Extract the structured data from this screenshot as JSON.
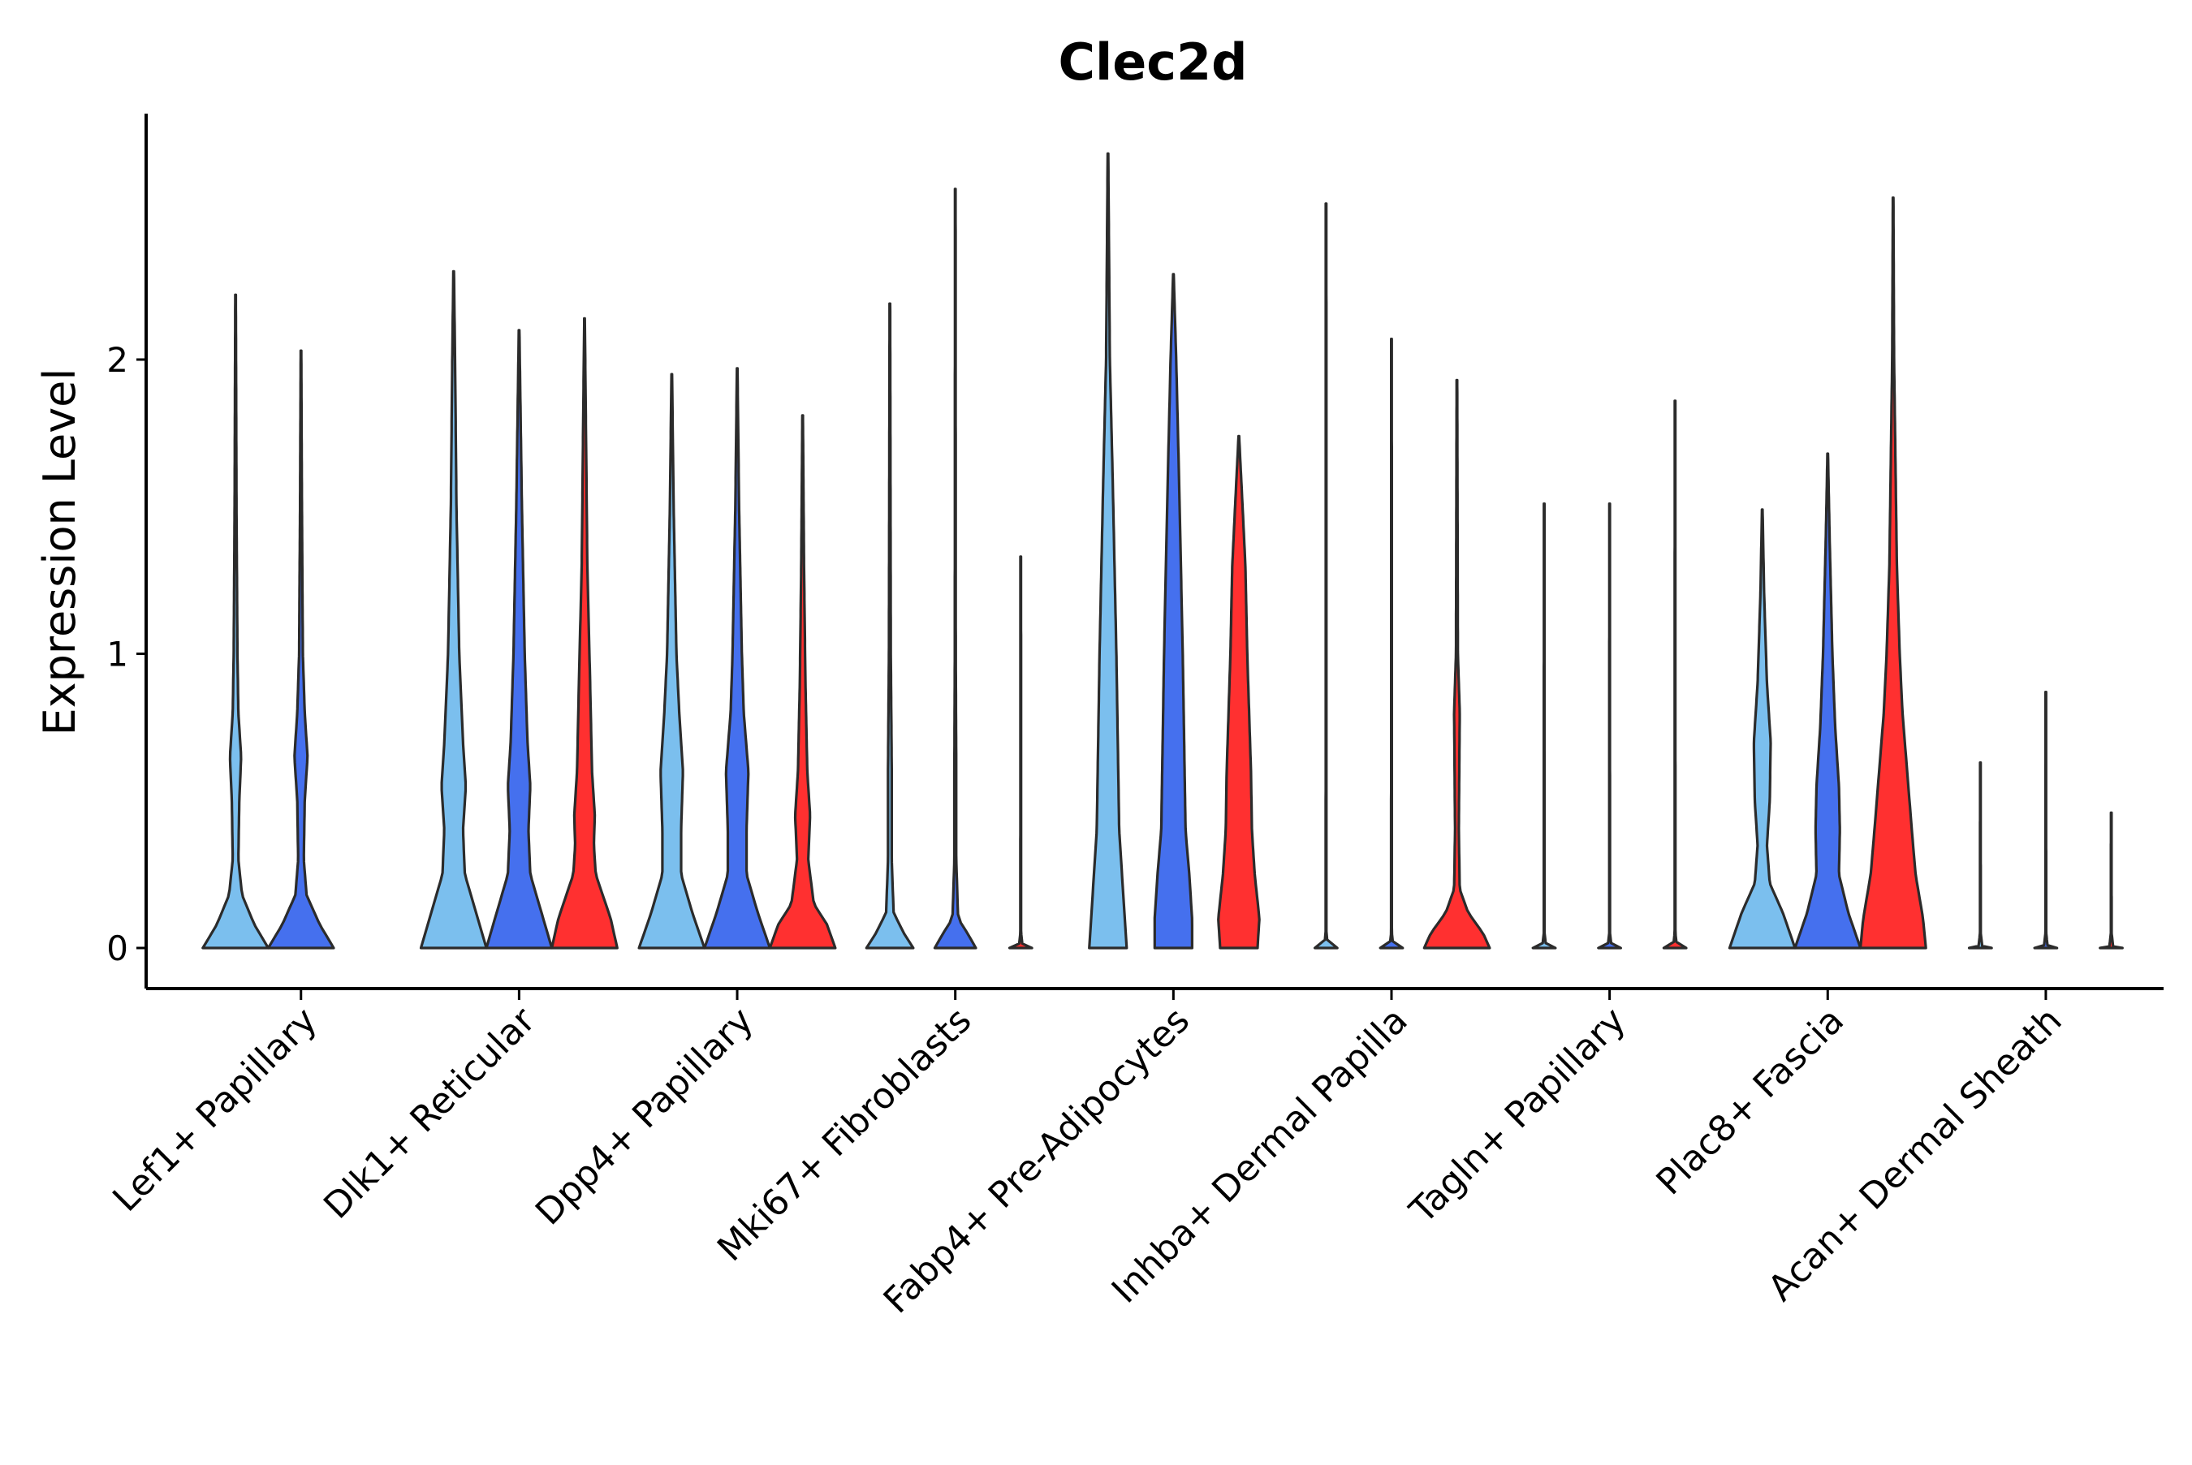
{
  "chart_data": {
    "type": "violin",
    "title": "Clec2d",
    "xlabel": "",
    "ylabel": "Expression Level",
    "ylim": [
      -0.14,
      2.82
    ],
    "yticks": [
      0,
      1,
      2
    ],
    "grid": false,
    "legend": "none",
    "categories": [
      "Lef1+ Papillary",
      "Dlk1+ Reticular",
      "Dpp4+ Papillary",
      "Mki67+ Fibroblasts",
      "Fabp4+ Pre-Adipocytes",
      "Inhba+ Dermal Papilla",
      "Tagln+ Papillary",
      "Plac8+ Fascia",
      "Acan+ Dermal Sheath"
    ],
    "series": [
      {
        "name": "group 1",
        "color": "#7BBFEE"
      },
      {
        "name": "group 2",
        "color": "#4570EE"
      },
      {
        "name": "group 3",
        "color": "#FF3030"
      }
    ],
    "violins": [
      {
        "category": 0,
        "series": 0,
        "max": 2.22,
        "profile": [
          [
            0,
            0.35
          ],
          [
            0.08,
            0.2
          ],
          [
            0.18,
            0.07
          ],
          [
            0.3,
            0.03
          ],
          [
            0.5,
            0.04
          ],
          [
            0.65,
            0.06
          ],
          [
            0.8,
            0.03
          ],
          [
            1.0,
            0.02
          ],
          [
            1.5,
            0.01
          ],
          [
            2.22,
            0.003
          ]
        ]
      },
      {
        "category": 0,
        "series": 1,
        "max": 2.03,
        "profile": [
          [
            0,
            0.35
          ],
          [
            0.08,
            0.2
          ],
          [
            0.18,
            0.06
          ],
          [
            0.3,
            0.03
          ],
          [
            0.5,
            0.04
          ],
          [
            0.65,
            0.07
          ],
          [
            0.8,
            0.04
          ],
          [
            1.0,
            0.02
          ],
          [
            1.5,
            0.01
          ],
          [
            2.03,
            0.003
          ]
        ]
      },
      {
        "category": 1,
        "series": 0,
        "max": 2.3,
        "profile": [
          [
            0,
            0.35
          ],
          [
            0.12,
            0.24
          ],
          [
            0.25,
            0.12
          ],
          [
            0.4,
            0.1
          ],
          [
            0.55,
            0.13
          ],
          [
            0.7,
            0.1
          ],
          [
            1.0,
            0.06
          ],
          [
            1.5,
            0.03
          ],
          [
            2.0,
            0.015
          ],
          [
            2.3,
            0.003
          ]
        ]
      },
      {
        "category": 1,
        "series": 1,
        "max": 2.1,
        "profile": [
          [
            0,
            0.35
          ],
          [
            0.12,
            0.24
          ],
          [
            0.25,
            0.12
          ],
          [
            0.4,
            0.1
          ],
          [
            0.55,
            0.12
          ],
          [
            0.7,
            0.09
          ],
          [
            1.0,
            0.06
          ],
          [
            1.5,
            0.03
          ],
          [
            2.1,
            0.003
          ]
        ]
      },
      {
        "category": 1,
        "series": 2,
        "max": 2.14,
        "profile": [
          [
            0,
            0.35
          ],
          [
            0.1,
            0.28
          ],
          [
            0.25,
            0.12
          ],
          [
            0.35,
            0.1
          ],
          [
            0.45,
            0.11
          ],
          [
            0.6,
            0.08
          ],
          [
            0.9,
            0.06
          ],
          [
            1.3,
            0.03
          ],
          [
            2.14,
            0.003
          ]
        ]
      },
      {
        "category": 2,
        "series": 0,
        "max": 1.95,
        "profile": [
          [
            0,
            0.35
          ],
          [
            0.12,
            0.22
          ],
          [
            0.25,
            0.1
          ],
          [
            0.4,
            0.1
          ],
          [
            0.6,
            0.12
          ],
          [
            0.8,
            0.08
          ],
          [
            1.0,
            0.05
          ],
          [
            1.5,
            0.02
          ],
          [
            1.95,
            0.003
          ]
        ]
      },
      {
        "category": 2,
        "series": 1,
        "max": 1.97,
        "profile": [
          [
            0,
            0.35
          ],
          [
            0.12,
            0.22
          ],
          [
            0.25,
            0.1
          ],
          [
            0.4,
            0.1
          ],
          [
            0.6,
            0.12
          ],
          [
            0.8,
            0.07
          ],
          [
            1.0,
            0.05
          ],
          [
            1.5,
            0.02
          ],
          [
            1.97,
            0.003
          ]
        ]
      },
      {
        "category": 2,
        "series": 2,
        "max": 1.81,
        "profile": [
          [
            0,
            0.35
          ],
          [
            0.08,
            0.26
          ],
          [
            0.15,
            0.12
          ],
          [
            0.3,
            0.06
          ],
          [
            0.45,
            0.08
          ],
          [
            0.6,
            0.05
          ],
          [
            0.9,
            0.03
          ],
          [
            1.3,
            0.015
          ],
          [
            1.81,
            0.003
          ]
        ]
      },
      {
        "category": 3,
        "series": 0,
        "max": 2.19,
        "profile": [
          [
            0,
            0.25
          ],
          [
            0.05,
            0.15
          ],
          [
            0.12,
            0.04
          ],
          [
            0.3,
            0.02
          ],
          [
            0.6,
            0.02
          ],
          [
            1.0,
            0.01
          ],
          [
            2.19,
            0.003
          ]
        ]
      },
      {
        "category": 3,
        "series": 1,
        "max": 2.58,
        "profile": [
          [
            0,
            0.22
          ],
          [
            0.05,
            0.13
          ],
          [
            0.1,
            0.03
          ],
          [
            0.3,
            0.01
          ],
          [
            0.6,
            0.01
          ],
          [
            1.0,
            0.005
          ],
          [
            2.58,
            0.003
          ]
        ]
      },
      {
        "category": 3,
        "series": 2,
        "max": 1.33,
        "profile": [
          [
            0,
            0.12
          ],
          [
            0.005,
            0.02
          ],
          [
            0.05,
            0.004
          ],
          [
            1.33,
            0.003
          ]
        ]
      },
      {
        "category": 4,
        "series": 0,
        "max": 2.7,
        "profile": [
          [
            0,
            0.2
          ],
          [
            0.1,
            0.18
          ],
          [
            0.25,
            0.15
          ],
          [
            0.4,
            0.12
          ],
          [
            0.6,
            0.11
          ],
          [
            0.8,
            0.1
          ],
          [
            1.0,
            0.09
          ],
          [
            1.3,
            0.07
          ],
          [
            1.6,
            0.05
          ],
          [
            2.0,
            0.02
          ],
          [
            2.7,
            0.003
          ]
        ]
      },
      {
        "category": 4,
        "series": 1,
        "max": 2.29,
        "profile": [
          [
            0,
            0.2
          ],
          [
            0.1,
            0.2
          ],
          [
            0.25,
            0.17
          ],
          [
            0.4,
            0.13
          ],
          [
            0.6,
            0.12
          ],
          [
            0.8,
            0.11
          ],
          [
            1.0,
            0.1
          ],
          [
            1.3,
            0.08
          ],
          [
            1.6,
            0.06
          ],
          [
            2.0,
            0.03
          ],
          [
            2.29,
            0.003
          ]
        ]
      },
      {
        "category": 4,
        "series": 2,
        "max": 1.74,
        "profile": [
          [
            0,
            0.2
          ],
          [
            0.1,
            0.22
          ],
          [
            0.25,
            0.17
          ],
          [
            0.4,
            0.14
          ],
          [
            0.6,
            0.13
          ],
          [
            0.8,
            0.11
          ],
          [
            1.0,
            0.09
          ],
          [
            1.3,
            0.07
          ],
          [
            1.5,
            0.04
          ],
          [
            1.74,
            0.003
          ]
        ]
      },
      {
        "category": 5,
        "series": 0,
        "max": 2.53,
        "profile": [
          [
            0,
            0.12
          ],
          [
            0.005,
            0.02
          ],
          [
            0.05,
            0.004
          ],
          [
            2.53,
            0.003
          ]
        ]
      },
      {
        "category": 5,
        "series": 1,
        "max": 2.07,
        "profile": [
          [
            0,
            0.12
          ],
          [
            0.005,
            0.02
          ],
          [
            0.05,
            0.004
          ],
          [
            2.07,
            0.003
          ]
        ]
      },
      {
        "category": 5,
        "series": 2,
        "max": 1.93,
        "profile": [
          [
            0,
            0.35
          ],
          [
            0.05,
            0.28
          ],
          [
            0.12,
            0.12
          ],
          [
            0.2,
            0.03
          ],
          [
            0.4,
            0.02
          ],
          [
            0.8,
            0.03
          ],
          [
            1.0,
            0.01
          ],
          [
            1.93,
            0.003
          ]
        ]
      },
      {
        "category": 6,
        "series": 0,
        "max": 1.51,
        "profile": [
          [
            0,
            0.12
          ],
          [
            0.005,
            0.02
          ],
          [
            0.05,
            0.004
          ],
          [
            1.51,
            0.003
          ]
        ]
      },
      {
        "category": 6,
        "series": 1,
        "max": 1.51,
        "profile": [
          [
            0,
            0.12
          ],
          [
            0.005,
            0.02
          ],
          [
            0.05,
            0.004
          ],
          [
            1.51,
            0.003
          ]
        ]
      },
      {
        "category": 6,
        "series": 2,
        "max": 1.86,
        "profile": [
          [
            0,
            0.12
          ],
          [
            0.005,
            0.02
          ],
          [
            0.05,
            0.004
          ],
          [
            1.86,
            0.003
          ]
        ]
      },
      {
        "category": 7,
        "series": 0,
        "max": 1.49,
        "profile": [
          [
            0,
            0.35
          ],
          [
            0.12,
            0.22
          ],
          [
            0.22,
            0.08
          ],
          [
            0.35,
            0.05
          ],
          [
            0.5,
            0.08
          ],
          [
            0.7,
            0.09
          ],
          [
            0.9,
            0.05
          ],
          [
            1.2,
            0.02
          ],
          [
            1.49,
            0.003
          ]
        ]
      },
      {
        "category": 7,
        "series": 1,
        "max": 1.68,
        "profile": [
          [
            0,
            0.35
          ],
          [
            0.12,
            0.22
          ],
          [
            0.25,
            0.12
          ],
          [
            0.4,
            0.13
          ],
          [
            0.55,
            0.12
          ],
          [
            0.75,
            0.08
          ],
          [
            1.0,
            0.05
          ],
          [
            1.4,
            0.02
          ],
          [
            1.68,
            0.003
          ]
        ]
      },
      {
        "category": 7,
        "series": 2,
        "max": 2.55,
        "profile": [
          [
            0,
            0.35
          ],
          [
            0.1,
            0.32
          ],
          [
            0.25,
            0.24
          ],
          [
            0.4,
            0.2
          ],
          [
            0.6,
            0.15
          ],
          [
            0.8,
            0.1
          ],
          [
            1.0,
            0.07
          ],
          [
            1.3,
            0.04
          ],
          [
            2.0,
            0.01
          ],
          [
            2.55,
            0.003
          ]
        ]
      },
      {
        "category": 8,
        "series": 0,
        "max": 0.63,
        "profile": [
          [
            0,
            0.12
          ],
          [
            0.005,
            0.02
          ],
          [
            0.05,
            0.004
          ],
          [
            0.63,
            0.003
          ]
        ]
      },
      {
        "category": 8,
        "series": 1,
        "max": 0.87,
        "profile": [
          [
            0,
            0.12
          ],
          [
            0.005,
            0.02
          ],
          [
            0.05,
            0.004
          ],
          [
            0.87,
            0.003
          ]
        ]
      },
      {
        "category": 8,
        "series": 2,
        "max": 0.46,
        "profile": [
          [
            0,
            0.12
          ],
          [
            0.005,
            0.02
          ],
          [
            0.05,
            0.004
          ],
          [
            0.46,
            0.003
          ]
        ]
      }
    ]
  }
}
